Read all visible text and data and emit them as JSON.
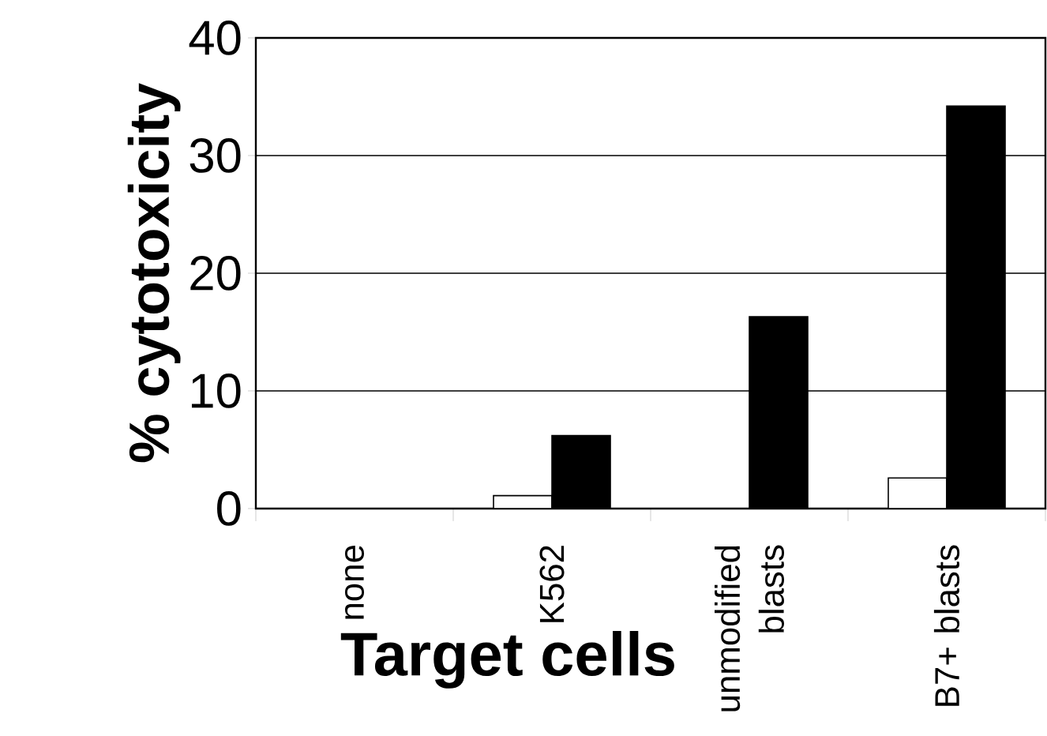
{
  "chart_data": {
    "type": "bar",
    "xlabel": "Target cells",
    "ylabel": "% cytotoxicity",
    "categories": [
      "none",
      "K562",
      "unmodified blasts",
      "B7+ blasts"
    ],
    "series": [
      {
        "color": "#ffffff",
        "values": [
          0,
          1.1,
          0,
          2.6
        ]
      },
      {
        "color": "#000000",
        "values": [
          0,
          6.2,
          16.3,
          34.2
        ]
      }
    ],
    "ylim": [
      0,
      40
    ],
    "yticks": [
      0,
      10,
      20,
      30,
      40
    ],
    "grid": "y"
  }
}
